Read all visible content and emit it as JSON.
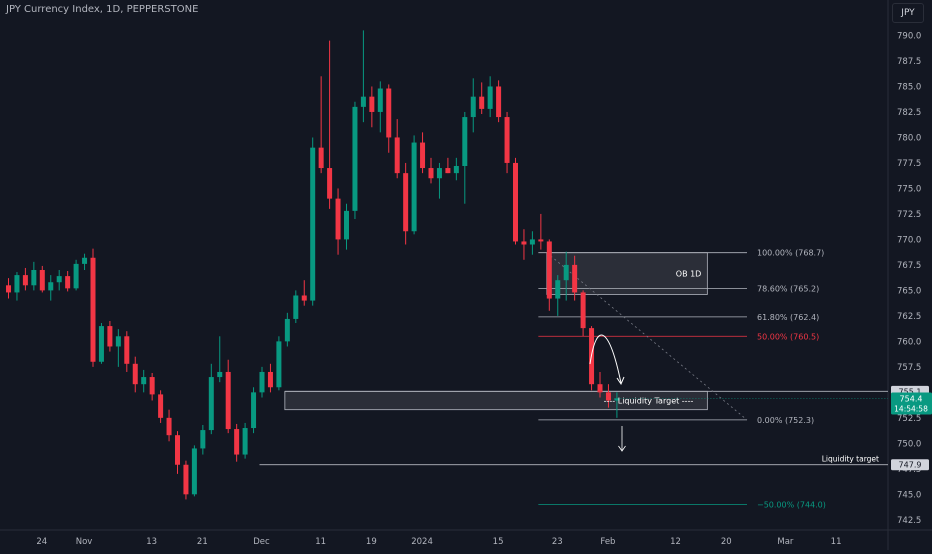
{
  "header": {
    "title": "JPY Currency Index, 1D, PEPPERSTONE",
    "badge": "JPY"
  },
  "price_tags": {
    "level_755": "755.1",
    "current_price": "754.4",
    "countdown": "14:54:58",
    "liquidity_target_level": "747.9"
  },
  "annotations": {
    "ob_label": "OB 1D",
    "liquidity_target_zone": "---- Liquidity Target ----",
    "liquidity_target_line": "Liquidity target"
  },
  "colors": {
    "background": "#131722",
    "bullish": "#089981",
    "bearish": "#f23645",
    "fib_line": "#b2b5be",
    "fib_50": "#f23645",
    "fib_ext": "#089981"
  },
  "chart_data": {
    "type": "candlestick",
    "ylim": [
      741.5,
      792.5
    ],
    "y_ticks": [
      "790.0",
      "787.5",
      "785.0",
      "782.5",
      "780.0",
      "777.5",
      "775.0",
      "772.5",
      "770.0",
      "767.5",
      "765.0",
      "762.5",
      "760.0",
      "757.5",
      "755.0",
      "752.5",
      "750.0",
      "747.5",
      "745.0",
      "742.5"
    ],
    "x_ticks": [
      {
        "i": 4,
        "label": "24"
      },
      {
        "i": 9,
        "label": "Nov"
      },
      {
        "i": 17,
        "label": "13"
      },
      {
        "i": 23,
        "label": "21"
      },
      {
        "i": 30,
        "label": "Dec"
      },
      {
        "i": 37,
        "label": "11"
      },
      {
        "i": 43,
        "label": "19"
      },
      {
        "i": 49,
        "label": "2024"
      },
      {
        "i": 58,
        "label": "15"
      },
      {
        "i": 65,
        "label": "23"
      },
      {
        "i": 71,
        "label": "Feb"
      },
      {
        "i": 79,
        "label": "12"
      },
      {
        "i": 85,
        "label": "20"
      },
      {
        "i": 92,
        "label": "Mar"
      },
      {
        "i": 98,
        "label": "11"
      }
    ],
    "candles": [
      [
        765.5,
        766.2,
        764.2,
        764.8
      ],
      [
        764.8,
        766.8,
        764.0,
        766.5
      ],
      [
        766.5,
        767.2,
        765.0,
        765.5
      ],
      [
        765.5,
        767.8,
        765.0,
        767.0
      ],
      [
        767.0,
        767.4,
        764.8,
        765.0
      ],
      [
        765.0,
        766.5,
        764.0,
        765.8
      ],
      [
        765.8,
        767.0,
        765.0,
        766.4
      ],
      [
        766.4,
        766.9,
        764.9,
        765.2
      ],
      [
        765.2,
        768.0,
        765.0,
        767.6
      ],
      [
        767.6,
        768.6,
        767.0,
        768.2
      ],
      [
        768.2,
        769.1,
        757.5,
        758.0
      ],
      [
        758.0,
        761.8,
        757.8,
        761.5
      ],
      [
        761.5,
        762.0,
        759.0,
        759.5
      ],
      [
        759.5,
        761.2,
        757.5,
        760.5
      ],
      [
        760.5,
        761.0,
        757.0,
        757.8
      ],
      [
        757.8,
        758.5,
        755.0,
        755.8
      ],
      [
        755.8,
        757.2,
        755.0,
        756.5
      ],
      [
        756.5,
        756.9,
        754.2,
        754.8
      ],
      [
        754.8,
        755.2,
        752.0,
        752.5
      ],
      [
        752.5,
        753.3,
        750.2,
        750.8
      ],
      [
        750.8,
        751.2,
        747.0,
        747.9
      ],
      [
        747.9,
        748.3,
        744.5,
        745.0
      ],
      [
        745.0,
        749.8,
        744.8,
        749.5
      ],
      [
        749.5,
        751.8,
        748.9,
        751.3
      ],
      [
        751.3,
        757.8,
        750.9,
        756.5
      ],
      [
        756.5,
        760.5,
        756.0,
        757.0
      ],
      [
        757.0,
        758.2,
        751.0,
        751.4
      ],
      [
        751.4,
        751.9,
        748.2,
        748.9
      ],
      [
        748.9,
        752.0,
        748.5,
        751.5
      ],
      [
        751.5,
        755.5,
        751.0,
        755.0
      ],
      [
        755.0,
        757.5,
        754.5,
        757.0
      ],
      [
        757.0,
        757.8,
        755.0,
        755.5
      ],
      [
        755.5,
        760.5,
        755.2,
        760.0
      ],
      [
        760.0,
        762.8,
        759.5,
        762.2
      ],
      [
        762.2,
        765.0,
        761.8,
        764.5
      ],
      [
        764.5,
        766.0,
        763.5,
        764.0
      ],
      [
        764.0,
        780.0,
        763.5,
        779.0
      ],
      [
        779.0,
        786.0,
        776.5,
        777.0
      ],
      [
        777.0,
        789.5,
        773.0,
        774.0
      ],
      [
        774.0,
        775.0,
        768.5,
        770.0
      ],
      [
        770.0,
        773.5,
        769.0,
        772.8
      ],
      [
        772.8,
        783.5,
        772.0,
        783.0
      ],
      [
        783.0,
        790.5,
        781.5,
        784.0
      ],
      [
        784.0,
        785.0,
        781.0,
        782.5
      ],
      [
        782.5,
        785.5,
        780.5,
        784.8
      ],
      [
        784.8,
        785.2,
        778.5,
        780.0
      ],
      [
        780.0,
        781.8,
        776.0,
        776.5
      ],
      [
        776.5,
        777.5,
        769.5,
        770.8
      ],
      [
        770.8,
        780.2,
        770.5,
        779.5
      ],
      [
        779.5,
        780.5,
        776.5,
        777.0
      ],
      [
        777.0,
        778.0,
        775.5,
        776.0
      ],
      [
        776.0,
        777.5,
        774.0,
        777.0
      ],
      [
        777.0,
        778.0,
        776.5,
        776.5
      ],
      [
        776.5,
        778.0,
        775.8,
        777.2
      ],
      [
        777.2,
        782.5,
        773.5,
        782.0
      ],
      [
        782.0,
        785.8,
        780.5,
        784.0
      ],
      [
        784.0,
        785.4,
        782.3,
        782.8
      ],
      [
        782.8,
        786.0,
        782.0,
        785.0
      ],
      [
        785.0,
        785.6,
        781.5,
        782.0
      ],
      [
        782.0,
        782.5,
        776.5,
        777.5
      ],
      [
        777.5,
        778.0,
        769.5,
        769.8
      ],
      [
        769.8,
        771.0,
        768.0,
        769.5
      ],
      [
        769.5,
        770.8,
        768.5,
        770.0
      ],
      [
        770.0,
        772.5,
        769.0,
        769.8
      ],
      [
        769.8,
        770.0,
        763.0,
        764.2
      ],
      [
        764.2,
        766.5,
        762.5,
        766.0
      ],
      [
        766.0,
        768.8,
        764.0,
        767.5
      ],
      [
        767.5,
        768.4,
        764.0,
        764.8
      ],
      [
        764.8,
        765.0,
        760.5,
        761.3
      ],
      [
        761.3,
        761.5,
        755.2,
        755.8
      ],
      [
        755.8,
        757.0,
        754.5,
        755.0
      ],
      [
        755.0,
        755.8,
        753.5,
        754.2
      ],
      [
        754.2,
        755.0,
        752.5,
        754.4
      ]
    ],
    "fib_levels": [
      {
        "value": 768.7,
        "label": "100.00% (768.7)",
        "color": "fib_line"
      },
      {
        "value": 765.2,
        "label": "78.60% (765.2)",
        "color": "fib_line"
      },
      {
        "value": 762.4,
        "label": "61.80% (762.4)",
        "color": "fib_line"
      },
      {
        "value": 760.5,
        "label": "50.00% (760.5)",
        "color": "fib_50"
      },
      {
        "value": 752.3,
        "label": "0.00% (752.3)",
        "color": "fib_line"
      },
      {
        "value": 744.0,
        "label": "−50.00% (744.0)",
        "color": "fib_ext"
      }
    ],
    "ob_zone": {
      "top": 768.7,
      "bottom": 764.6,
      "start_i": 64,
      "end_i": 83
    },
    "liquidity_zone": {
      "top": 755.1,
      "bottom": 753.3,
      "start_i": 33,
      "end_i": 83
    },
    "liquidity_target_value": 747.9
  }
}
